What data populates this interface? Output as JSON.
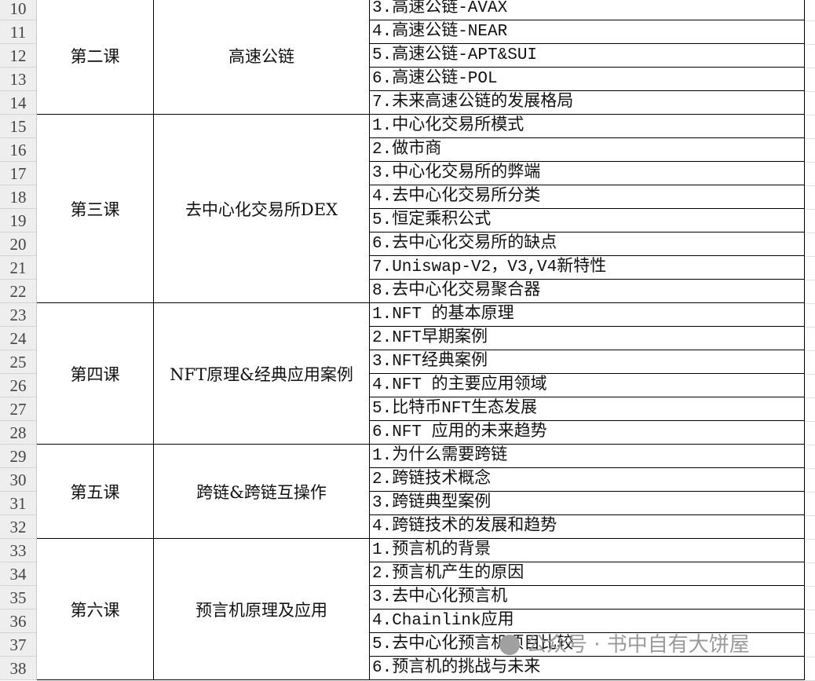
{
  "first_row": 10,
  "last_row": 38,
  "groups": [
    {
      "lesson": "第二课",
      "topic": "高速公链",
      "start_row": 10,
      "items": [
        "3.高速公链-AVAX",
        "4.高速公链-NEAR",
        "5.高速公链-APT&SUI",
        "6.高速公链-POL",
        "7.未来高速公链的发展格局"
      ]
    },
    {
      "lesson": "第三课",
      "topic": "去中心化交易所DEX",
      "start_row": 15,
      "items": [
        "1.中心化交易所模式",
        "2.做市商",
        "3.中心化交易所的弊端",
        "4.去中心化交易所分类",
        "5.恒定乘积公式",
        "6.去中心化交易所的缺点",
        "7.Uniswap-V2，V3,V4新特性",
        "8.去中心化交易聚合器"
      ]
    },
    {
      "lesson": "第四课",
      "topic": "NFT原理&经典应用案例",
      "start_row": 23,
      "items": [
        "1.NFT 的基本原理",
        "2.NFT早期案例",
        "3.NFT经典案例",
        "4.NFT 的主要应用领域",
        "5.比特币NFT生态发展",
        "6.NFT 应用的未来趋势"
      ]
    },
    {
      "lesson": "第五课",
      "topic": "跨链&跨链互操作",
      "start_row": 29,
      "items": [
        "1.为什么需要跨链",
        "2.跨链技术概念",
        "3.跨链典型案例",
        "4.跨链技术的发展和趋势"
      ]
    },
    {
      "lesson": "第六课",
      "topic": "预言机原理及应用",
      "start_row": 33,
      "items": [
        "1.预言机的背景",
        "2.预言机产生的原因",
        "3.去中心化预言机",
        "4.Chainlink应用",
        "5.去中心化预言机项目比较",
        "6.预言机的挑战与未来"
      ]
    }
  ],
  "watermark": {
    "text": "公众号 · 书中自有大饼屋",
    "icon": "wechat-icon"
  }
}
